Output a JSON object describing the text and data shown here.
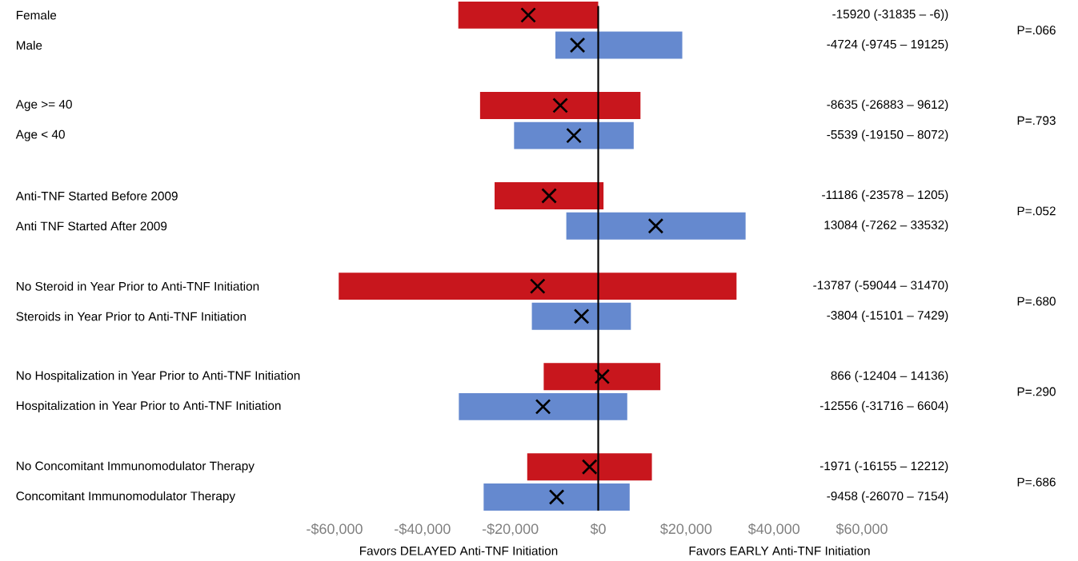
{
  "chart_data": {
    "type": "bar",
    "orientation": "horizontal",
    "categories": [
      "Female",
      "Male",
      null,
      "Age >= 40",
      "Age < 40",
      null,
      "Anti-TNF Started Before 2009",
      "Anti TNF Started After 2009",
      null,
      "No Steroid in Year Prior to Anti-TNF Initiation",
      "Steroids in Year Prior to Anti-TNF Initiation",
      null,
      "No Hospitalization in Year Prior to Anti-TNF Initiation",
      "Hospitalization in Year Prior to Anti-TNF Initiation",
      null,
      "No Concomitant Immunomodulator Therapy",
      "Concomitant Immunomodulator Therapy"
    ],
    "series": [
      {
        "base": [
          -31835,
          -9745,
          null,
          -26883,
          -19150,
          null,
          -23578,
          -7262,
          null,
          -59044,
          -15101,
          null,
          -12404,
          -31716,
          null,
          -16155,
          -26070
        ],
        "values": [
          31829,
          28870,
          null,
          36495,
          27222,
          null,
          24783,
          40794,
          null,
          90514,
          22530,
          null,
          26540,
          38320,
          null,
          28367,
          33224
        ],
        "colors": [
          "#c8161d",
          "#6589cf",
          null,
          "#c8161d",
          "#6589cf",
          null,
          "#c8161d",
          "#6589cf",
          null,
          "#c8161d",
          "#6589cf",
          null,
          "#c8161d",
          "#6589cf",
          null,
          "#c8161d",
          "#6589cf"
        ]
      },
      {
        "type": "scatter",
        "color": "#000000",
        "marker": "cross",
        "values": [
          -15920,
          -4724,
          null,
          -8635,
          -5539,
          null,
          -11186,
          13084,
          null,
          -13787,
          -3804,
          null,
          866,
          -12556,
          null,
          -1971,
          -9458
        ],
        "value_labels": [
          "-15920 (-31835 – -6))",
          "-4724 (-9745 – 19125)",
          null,
          "-8635 (-26883 – 9612)",
          "-5539 (-19150 – 8072)",
          null,
          "-11186 (-23578 – 1205)",
          "13084 (-7262 – 33532)",
          null,
          "-13787 (-59044 – 31470)",
          "-3804 (-15101 – 7429)",
          null,
          "866 (-12404 – 14136)",
          "-12556 (-31716 – 6604)",
          null,
          "-1971 (-16155 – 12212)",
          "-9458 (-26070 – 7154)"
        ]
      }
    ],
    "xlim": [
      -60000,
      60000
    ],
    "xticks": [
      {
        "value": -60000,
        "label": "-$60,000"
      },
      {
        "value": -40000,
        "label": "-$40,000"
      },
      {
        "value": -20000,
        "label": "-$20,000"
      },
      {
        "value": 0,
        "label": "$0"
      },
      {
        "value": 20000,
        "label": "$20,000"
      },
      {
        "value": 40000,
        "label": "$40,000"
      },
      {
        "value": 60000,
        "label": "$60,000"
      }
    ],
    "ref_lines": [
      {
        "axis": "x",
        "value": 0,
        "color": "#000000"
      }
    ],
    "annotations": [
      "P=.066",
      "P=.793",
      "P=.052",
      "P=.680",
      "P=.290",
      "P=.686",
      "Favors DELAYED Anti-TNF Initiation",
      "Favors EARLY Anti-TNF Initiation"
    ]
  }
}
